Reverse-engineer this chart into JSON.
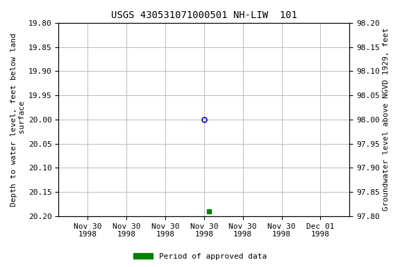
{
  "title": "USGS 430531071000501 NH-LIW  101",
  "ylabel_left": "Depth to water level, feet below land\n surface",
  "ylabel_right": "Groundwater level above NGVD 1929, feet",
  "ylim_left": [
    19.8,
    20.2
  ],
  "ylim_right_top": 98.2,
  "ylim_right_bottom": 97.8,
  "yticks_left": [
    19.8,
    19.85,
    19.9,
    19.95,
    20.0,
    20.05,
    20.1,
    20.15,
    20.2
  ],
  "yticks_right": [
    98.2,
    98.15,
    98.1,
    98.05,
    98.0,
    97.95,
    97.9,
    97.85,
    97.8
  ],
  "xlim_days": [
    -1.5,
    1.5
  ],
  "x_ticks_offsets": [
    -1.2,
    -0.8,
    -0.4,
    0.0,
    0.4,
    0.8,
    1.2
  ],
  "x_tick_labels": [
    "Nov 30\n1998",
    "Nov 30\n1998",
    "Nov 30\n1998",
    "Nov 30\n1998",
    "Nov 30\n1998",
    "Nov 30\n1998",
    "Dec 01\n1998"
  ],
  "data_point_blue_x": 0.0,
  "data_point_blue_y": 20.0,
  "data_point_green_x": 0.05,
  "data_point_green_y": 20.19,
  "blue_color": "#0000cc",
  "green_color": "#008000",
  "bg_color": "#ffffff",
  "grid_color": "#bbbbbb",
  "legend_label": "Period of approved data",
  "title_fontsize": 10,
  "label_fontsize": 8,
  "tick_fontsize": 8
}
